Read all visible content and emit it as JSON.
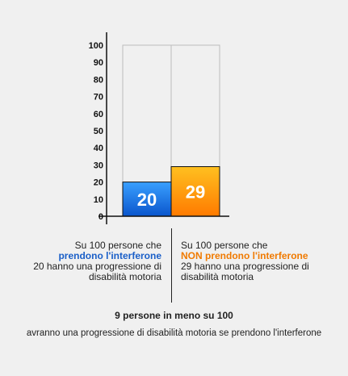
{
  "chart_data": {
    "type": "bar",
    "categories": [
      "prendono l'interferone",
      "NON prendono l'interferone"
    ],
    "values": [
      20,
      29
    ],
    "bar_labels": [
      "20",
      "29"
    ],
    "ylim": [
      0,
      100
    ],
    "yticks": [
      "0",
      "10",
      "20",
      "30",
      "40",
      "50",
      "60",
      "70",
      "80",
      "90",
      "100"
    ],
    "colors": [
      "#1a6fe0",
      "#ff9000"
    ]
  },
  "captions": {
    "left": {
      "line1": "Su 100 persone che",
      "highlight": "prendono l'interferone",
      "line3": "20 hanno una progressione di",
      "line4": "disabilità motoria"
    },
    "right": {
      "line1": "Su 100 persone che",
      "highlight": "NON prendono l'interferone",
      "line3": "29 hanno una progressione di",
      "line4": "disabilità motoria"
    }
  },
  "summary": {
    "title": "9 persone in meno su 100",
    "text": "avranno una progressione di disabilità motoria se prendono l'interferone"
  }
}
